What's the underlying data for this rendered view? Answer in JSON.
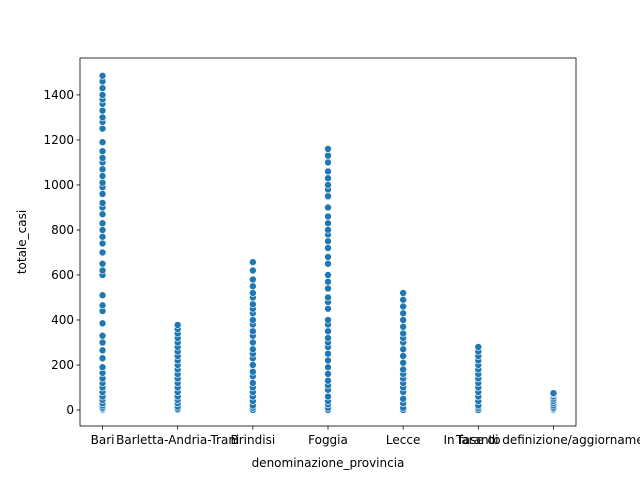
{
  "chart_data": {
    "type": "scatter",
    "x_label": "denominazione_provincia",
    "y_label": "totale_casi",
    "categories": [
      "Bari",
      "Barletta-Andria-Trani",
      "Brindisi",
      "Foggia",
      "Lecce",
      "Taranto",
      "In fase di definizione/aggiornamento"
    ],
    "values": [
      [
        0,
        5,
        10,
        20,
        30,
        45,
        60,
        80,
        100,
        120,
        140,
        165,
        190,
        230,
        265,
        300,
        330,
        385,
        440,
        465,
        510,
        600,
        620,
        650,
        700,
        740,
        770,
        800,
        830,
        870,
        900,
        920,
        960,
        990,
        1010,
        1040,
        1070,
        1100,
        1120,
        1150,
        1190,
        1250,
        1280,
        1300,
        1330,
        1360,
        1380,
        1400,
        1430,
        1460,
        1485
      ],
      [
        0,
        5,
        15,
        30,
        45,
        60,
        80,
        100,
        120,
        140,
        160,
        180,
        200,
        220,
        240,
        260,
        280,
        300,
        320,
        340,
        360,
        378
      ],
      [
        0,
        10,
        20,
        40,
        60,
        80,
        100,
        120,
        150,
        170,
        200,
        230,
        250,
        270,
        300,
        330,
        350,
        380,
        400,
        430,
        450,
        470,
        500,
        520,
        550,
        580,
        620,
        657
      ],
      [
        0,
        10,
        25,
        40,
        60,
        90,
        110,
        130,
        160,
        190,
        220,
        250,
        280,
        300,
        320,
        350,
        380,
        400,
        450,
        480,
        500,
        540,
        570,
        600,
        650,
        680,
        720,
        750,
        780,
        800,
        830,
        860,
        900,
        950,
        980,
        1000,
        1030,
        1060,
        1100,
        1130,
        1160
      ],
      [
        0,
        10,
        30,
        50,
        80,
        100,
        120,
        140,
        160,
        180,
        210,
        240,
        270,
        300,
        320,
        340,
        370,
        400,
        430,
        460,
        490,
        520
      ],
      [
        0,
        10,
        20,
        40,
        60,
        80,
        100,
        120,
        140,
        160,
        180,
        200,
        220,
        240,
        260,
        280
      ],
      [
        0,
        5,
        10,
        20,
        30,
        40,
        50,
        60,
        70,
        75
      ]
    ],
    "color": "#1f77b4",
    "ylim": [
      -71,
      1564
    ],
    "yticks": [
      0,
      200,
      400,
      600,
      800,
      1000,
      1200,
      1400
    ]
  }
}
